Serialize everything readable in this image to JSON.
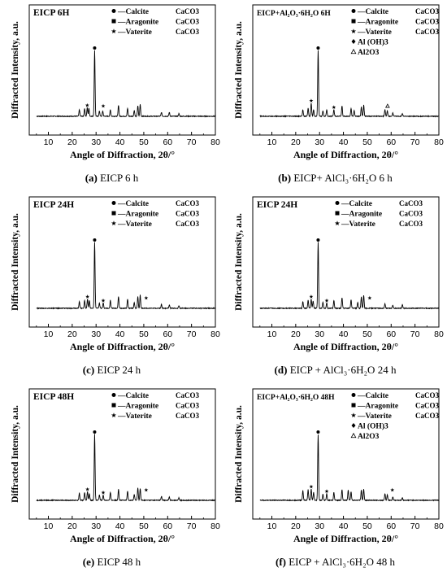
{
  "common": {
    "xlabel": "Angle of Diffraction, 2θ/°",
    "ylabel": "Diffracted Intensity,   a.u.",
    "xticks": [
      "10",
      "20",
      "30",
      "40",
      "50",
      "60",
      "70",
      "80"
    ],
    "xlim": [
      2,
      80
    ]
  },
  "chart_data": [
    {
      "type": "line",
      "title": "EICP  6H",
      "caption_letter": "(a)",
      "caption_rest": " EICP 6 h",
      "legend": [
        {
          "label": "—Calcite",
          "formula": "CaCO3",
          "marker": "dot"
        },
        {
          "label": "—Aragonite",
          "formula": "CaCO3",
          "marker": "square"
        },
        {
          "label": "—Vaterite",
          "formula": "CaCO3",
          "marker": "star"
        }
      ],
      "xlim": [
        2,
        80
      ],
      "series": [
        {
          "x": [
            23.0,
            25.2,
            26.3,
            27.0,
            29.4,
            31.4,
            32.8,
            36.0,
            39.4,
            43.2,
            46.0,
            47.5,
            48.5,
            57.4,
            60.7,
            64.7
          ],
          "values": [
            0.1,
            0.12,
            0.13,
            0.12,
            1.0,
            0.08,
            0.08,
            0.1,
            0.17,
            0.12,
            0.09,
            0.16,
            0.18,
            0.06,
            0.06,
            0.04
          ]
        }
      ],
      "symbols": [
        {
          "x": 29.4,
          "marker": "dot"
        },
        {
          "x": 26.3,
          "marker": "star"
        },
        {
          "x": 33.0,
          "marker": "star"
        }
      ]
    },
    {
      "type": "line",
      "title": "EICP+Al₂O₃·6H₂O  6H",
      "caption_letter": "(b)",
      "caption_rest": " EICP+ AlCl₃·6H₂O 6 h",
      "legend": [
        {
          "label": "—Calcite",
          "formula": "CaCO3",
          "marker": "dot"
        },
        {
          "label": "—Aragonite",
          "formula": "CaCO3",
          "marker": "square"
        },
        {
          "label": "—Vaterite",
          "formula": "CaCO3",
          "marker": "star"
        },
        {
          "label": "Al (OH)3",
          "formula": "",
          "marker": "diamond"
        },
        {
          "label": "Al2O3",
          "formula": "",
          "marker": "triangle"
        }
      ],
      "xlim": [
        2,
        80
      ],
      "series": [
        {
          "x": [
            23.0,
            25.2,
            26.5,
            27.5,
            29.4,
            31.4,
            33.0,
            36.0,
            39.4,
            43.2,
            44.5,
            47.5,
            48.5,
            57.4,
            58.4,
            60.7,
            64.7
          ],
          "values": [
            0.1,
            0.12,
            0.2,
            0.1,
            1.0,
            0.08,
            0.1,
            0.1,
            0.16,
            0.12,
            0.09,
            0.14,
            0.17,
            0.1,
            0.08,
            0.05,
            0.04
          ]
        }
      ],
      "symbols": [
        {
          "x": 29.4,
          "marker": "dot"
        },
        {
          "x": 26.5,
          "marker": "star"
        },
        {
          "x": 36.0,
          "marker": "star"
        },
        {
          "x": 58.5,
          "marker": "triangle"
        }
      ]
    },
    {
      "type": "line",
      "title": "EICP  24H",
      "caption_letter": "(c)",
      "caption_rest": " EICP 24 h",
      "legend": [
        {
          "label": "—Calcite",
          "formula": "CaCO3",
          "marker": "dot"
        },
        {
          "label": "—Aragonite",
          "formula": "CaCO3",
          "marker": "square"
        },
        {
          "label": "—Vaterite",
          "formula": "CaCO3",
          "marker": "star"
        }
      ],
      "xlim": [
        2,
        80
      ],
      "series": [
        {
          "x": [
            23.0,
            25.2,
            26.4,
            27.2,
            29.4,
            31.4,
            33.0,
            36.0,
            39.4,
            43.2,
            46.0,
            47.5,
            48.5,
            57.4,
            60.7,
            64.7
          ],
          "values": [
            0.1,
            0.12,
            0.14,
            0.12,
            1.0,
            0.08,
            0.08,
            0.12,
            0.18,
            0.14,
            0.09,
            0.18,
            0.2,
            0.06,
            0.05,
            0.04
          ]
        }
      ],
      "symbols": [
        {
          "x": 29.4,
          "marker": "dot"
        },
        {
          "x": 26.4,
          "marker": "star"
        },
        {
          "x": 33.0,
          "marker": "star"
        },
        {
          "x": 51.0,
          "marker": "star"
        }
      ]
    },
    {
      "type": "line",
      "title": "EICP  24H",
      "caption_letter": "(d)",
      "caption_rest": " EICP + AlCl₃·6H₂O 24 h",
      "legend": [
        {
          "label": "—Calcite",
          "formula": "CaCO3",
          "marker": "dot"
        },
        {
          "label": "—Aragonite",
          "formula": "CaCO3",
          "marker": "square"
        },
        {
          "label": "—Vaterite",
          "formula": "CaCO3",
          "marker": "star"
        }
      ],
      "xlim": [
        2,
        80
      ],
      "series": [
        {
          "x": [
            23.0,
            25.2,
            26.5,
            27.3,
            29.4,
            31.4,
            33.0,
            36.0,
            39.4,
            43.2,
            46.0,
            47.5,
            48.5,
            57.4,
            60.7,
            64.7
          ],
          "values": [
            0.1,
            0.12,
            0.14,
            0.11,
            1.0,
            0.09,
            0.08,
            0.12,
            0.16,
            0.13,
            0.09,
            0.17,
            0.2,
            0.07,
            0.05,
            0.05
          ]
        }
      ],
      "symbols": [
        {
          "x": 29.4,
          "marker": "dot"
        },
        {
          "x": 26.5,
          "marker": "star"
        },
        {
          "x": 33.0,
          "marker": "star"
        },
        {
          "x": 51.0,
          "marker": "star"
        }
      ]
    },
    {
      "type": "line",
      "title": "EICP  48H",
      "caption_letter": "(e)",
      "caption_rest": " EICP 48 h",
      "legend": [
        {
          "label": "—Calcite",
          "formula": "CaCO3",
          "marker": "dot"
        },
        {
          "label": "—Aragonite",
          "formula": "CaCO3",
          "marker": "square"
        },
        {
          "label": "—Vaterite",
          "formula": "CaCO3",
          "marker": "star"
        }
      ],
      "xlim": [
        2,
        80
      ],
      "series": [
        {
          "x": [
            23.0,
            25.2,
            26.4,
            27.2,
            29.4,
            31.4,
            33.0,
            36.0,
            39.4,
            43.2,
            46.0,
            47.5,
            48.5,
            57.4,
            60.7,
            64.7
          ],
          "values": [
            0.11,
            0.12,
            0.13,
            0.1,
            1.0,
            0.08,
            0.08,
            0.12,
            0.17,
            0.14,
            0.09,
            0.19,
            0.18,
            0.06,
            0.05,
            0.04
          ]
        }
      ],
      "symbols": [
        {
          "x": 29.4,
          "marker": "dot"
        },
        {
          "x": 26.4,
          "marker": "star"
        },
        {
          "x": 33.0,
          "marker": "star"
        },
        {
          "x": 51.0,
          "marker": "star"
        }
      ]
    },
    {
      "type": "line",
      "title": "EICP+Al₂O₃·6H₂O  48H",
      "caption_letter": "(f)",
      "caption_rest": " EICP + AlCl₃·6H₂O 48 h",
      "legend": [
        {
          "label": "—Calcite",
          "formula": "CaCO3",
          "marker": "dot"
        },
        {
          "label": "—Aragonite",
          "formula": "CaCO3",
          "marker": "square"
        },
        {
          "label": "—Vaterite",
          "formula": "CaCO3",
          "marker": "star"
        },
        {
          "label": "Al (OH)3",
          "formula": "",
          "marker": "diamond"
        },
        {
          "label": "Al2O3",
          "formula": "",
          "marker": "triangle"
        }
      ],
      "xlim": [
        2,
        80
      ],
      "series": [
        {
          "x": [
            23.0,
            25.2,
            26.5,
            27.5,
            29.4,
            31.4,
            33.0,
            36.0,
            39.4,
            42.0,
            43.2,
            47.5,
            48.5,
            57.4,
            58.4,
            60.7,
            64.7
          ],
          "values": [
            0.15,
            0.16,
            0.17,
            0.12,
            1.0,
            0.09,
            0.1,
            0.12,
            0.16,
            0.16,
            0.13,
            0.15,
            0.17,
            0.1,
            0.08,
            0.05,
            0.04
          ]
        }
      ],
      "symbols": [
        {
          "x": 29.4,
          "marker": "dot"
        },
        {
          "x": 26.5,
          "marker": "star"
        },
        {
          "x": 33.0,
          "marker": "star"
        },
        {
          "x": 60.5,
          "marker": "star"
        }
      ]
    }
  ]
}
